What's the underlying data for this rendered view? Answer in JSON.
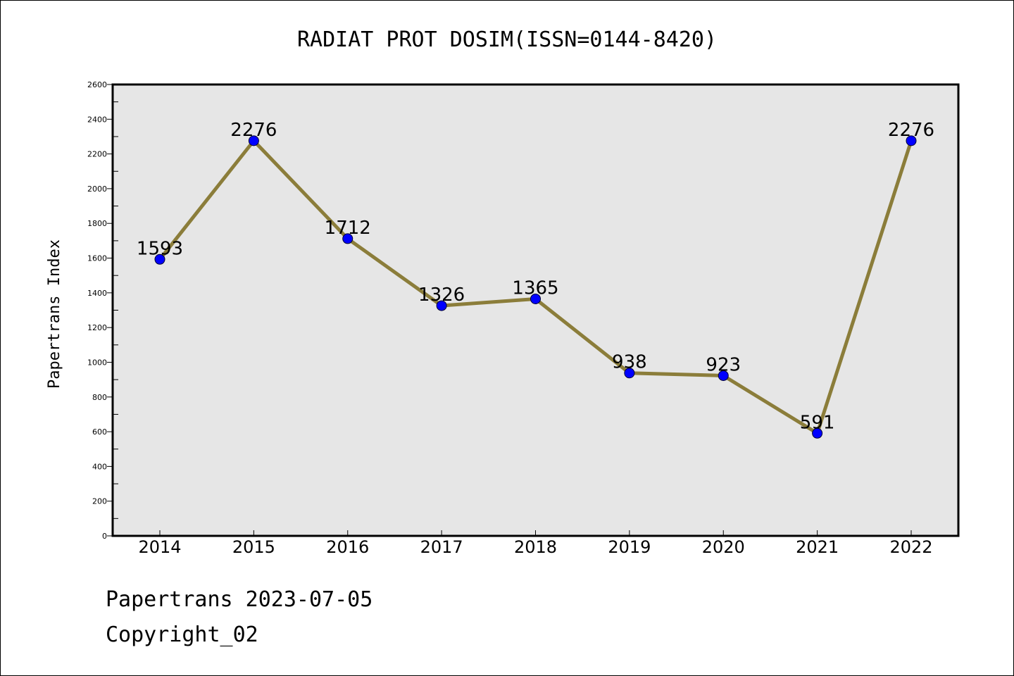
{
  "chart_data": {
    "type": "line",
    "title": "RADIAT PROT DOSIM(ISSN=0144-8420)",
    "ylabel": "Papertrans Index",
    "xlabel": "",
    "categories": [
      "2014",
      "2015",
      "2016",
      "2017",
      "2018",
      "2019",
      "2020",
      "2021",
      "2022"
    ],
    "values": [
      1593,
      2276,
      1712,
      1326,
      1365,
      938,
      923,
      591,
      2276
    ],
    "ylim": [
      0,
      2600
    ],
    "yticks": [
      0,
      200,
      400,
      600,
      800,
      1000,
      1200,
      1400,
      1600,
      1800,
      2000,
      2200,
      2400,
      2600
    ],
    "grid": false,
    "legend": "none",
    "data_labels": true,
    "colors": {
      "line": "#8b7d3a",
      "marker": "#0000ff",
      "plot_background": "#e6e6e6"
    }
  },
  "footer": {
    "source": "Papertrans 2023-07-05",
    "copyright": "Copyright_02"
  }
}
